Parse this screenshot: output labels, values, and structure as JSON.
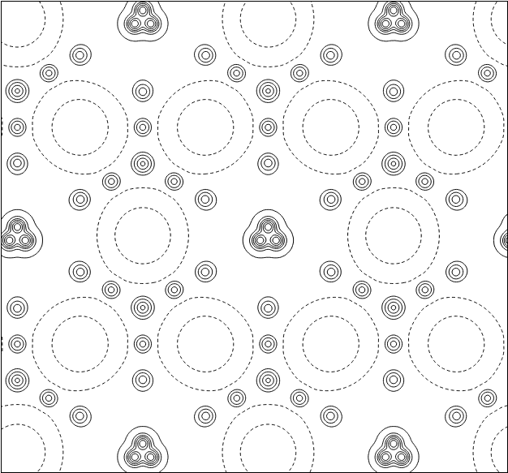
{
  "chart_data": {
    "type": "contour",
    "xlim": [
      0,
      626
    ],
    "ylim": [
      0,
      583
    ],
    "tick_labels": false,
    "grid": false,
    "color": "#000000",
    "lattice": {
      "origin": [
        20,
        290
      ],
      "a": [
        310,
        0
      ],
      "b": [
        155,
        268
      ]
    },
    "motif": [
      {
        "dx": 0,
        "dy": -11,
        "height": 10,
        "sigma": 6
      },
      {
        "dx": -10,
        "dy": 6,
        "height": 10,
        "sigma": 6
      },
      {
        "dx": 10,
        "dy": 6,
        "height": 10,
        "sigma": 6
      },
      {
        "dx": 155,
        "dy": 0,
        "height": -3,
        "sigma": 38
      },
      {
        "dx": 77.5,
        "dy": 134,
        "height": -3,
        "sigma": 38
      },
      {
        "dx": -77.5,
        "dy": 134,
        "height": -3,
        "sigma": 38
      },
      {
        "dx": 155,
        "dy": 89,
        "height": 5,
        "sigma": 7
      },
      {
        "dx": 0,
        "dy": 179,
        "height": 5,
        "sigma": 7
      },
      {
        "dx": 116,
        "dy": 67,
        "height": 4,
        "sigma": 6
      },
      {
        "dx": 194,
        "dy": 67,
        "height": 4,
        "sigma": 6
      },
      {
        "dx": 155,
        "dy": 134,
        "height": 4,
        "sigma": 6
      },
      {
        "dx": 0,
        "dy": 134,
        "height": 4,
        "sigma": 6
      },
      {
        "dx": 38.75,
        "dy": 201,
        "height": 4,
        "sigma": 6
      },
      {
        "dx": -38.75,
        "dy": 201,
        "height": 4,
        "sigma": 6
      },
      {
        "dx": 78,
        "dy": 45,
        "height": 4,
        "sigma": 6
      },
      {
        "dx": 0,
        "dy": 90,
        "height": 4,
        "sigma": 6
      },
      {
        "dx": -78,
        "dy": 45,
        "height": 4,
        "sigma": 6
      },
      {
        "dx": -78,
        "dy": -45,
        "height": 4,
        "sigma": 6
      },
      {
        "dx": 0,
        "dy": -90,
        "height": 4,
        "sigma": 6
      },
      {
        "dx": 78,
        "dy": -45,
        "height": 4,
        "sigma": 6
      }
    ],
    "contours": [
      {
        "levels": [
          -2,
          -1
        ],
        "line_style": "dashed"
      },
      {
        "levels": [
          0,
          1,
          2.5,
          4,
          6,
          8
        ],
        "line_style": "solid"
      }
    ]
  }
}
